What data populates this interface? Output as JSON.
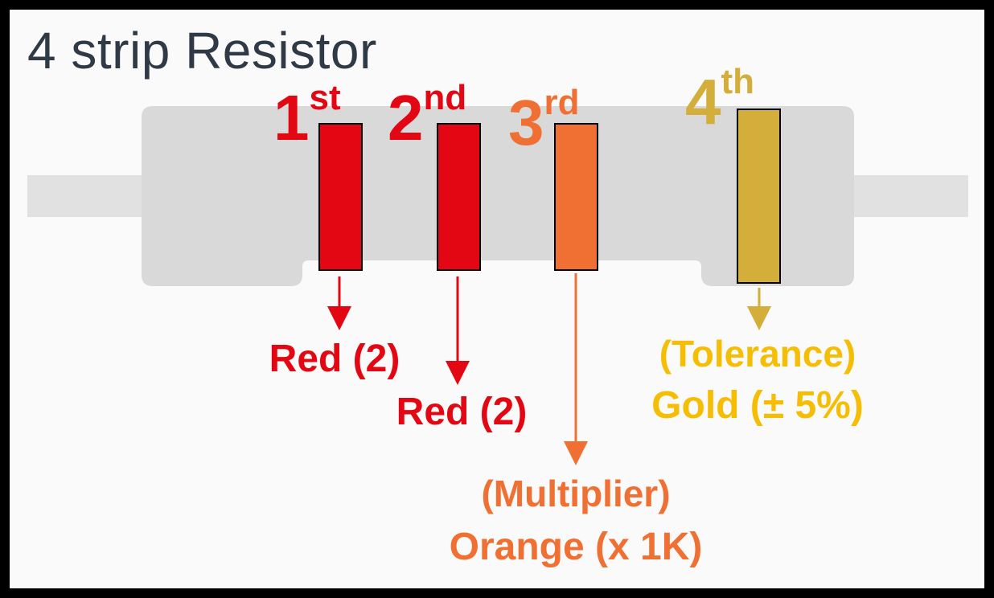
{
  "title": "4 strip Resistor",
  "colors": {
    "red": "#e20713",
    "orange": "#f07034",
    "gold": "#d3ae3a",
    "gold_text": "#f5be05",
    "body": "#d9d9d9",
    "lead": "#e1e1e1"
  },
  "bands": [
    {
      "ordinal": "1",
      "suffix": "st",
      "color_name": "red",
      "lines": [
        "Red (2)"
      ]
    },
    {
      "ordinal": "2",
      "suffix": "nd",
      "color_name": "red",
      "lines": [
        "Red (2)"
      ]
    },
    {
      "ordinal": "3",
      "suffix": "rd",
      "color_name": "orange",
      "lines": [
        "(Multiplier)",
        "Orange (x 1K)"
      ]
    },
    {
      "ordinal": "4",
      "suffix": "th",
      "color_name": "gold",
      "lines": [
        "(Tolerance)",
        "Gold (± 5%)"
      ]
    }
  ]
}
